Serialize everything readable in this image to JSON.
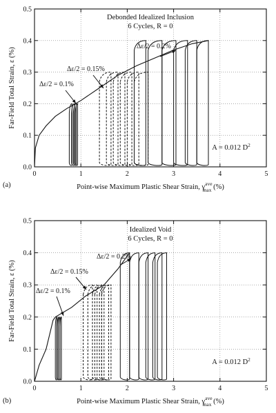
{
  "chart_data": [
    {
      "type": "line",
      "panel_label": "(a)",
      "title_lines": [
        "Debonded Idealized Inclusion",
        "6 Cycles, R = 0"
      ],
      "xlabel_main": "Point-wise Maximum Plastic Shear Strain, γ",
      "xlabel_sup": "ave",
      "xlabel_sub": "max",
      "xlabel_unit": "(%)",
      "ylabel": "Far-Field Total Strain, ε (%)",
      "xlim": [
        0,
        5
      ],
      "ylim": [
        0,
        0.5
      ],
      "xticks": [
        "0",
        "1",
        "2",
        "3",
        "4",
        "5"
      ],
      "yticks": [
        "0.0",
        "0.1",
        "0.2",
        "0.3",
        "0.4",
        "0.5"
      ],
      "grid": true,
      "area_note": "A = 0.012 D",
      "area_note_sup": "2",
      "annotations": [
        "Δε/2 = 0.2%",
        "Δε/2 = 0.15%",
        "Δε/2 = 0.1%"
      ],
      "series": [
        {
          "style": "solid",
          "envelope": [
            [
              0,
              0
            ],
            [
              0.02,
              0.06
            ],
            [
              0.1,
              0.1
            ],
            [
              0.25,
              0.13
            ],
            [
              0.45,
              0.16
            ],
            [
              0.7,
              0.185
            ],
            [
              1.0,
              0.21
            ],
            [
              1.4,
              0.25
            ],
            [
              1.8,
              0.29
            ],
            [
              2.2,
              0.32
            ],
            [
              2.6,
              0.345
            ],
            [
              3.0,
              0.37
            ],
            [
              3.4,
              0.39
            ],
            [
              3.75,
              0.4
            ]
          ],
          "loops": [
            [
              0.75,
              0.81
            ],
            [
              0.8,
              0.86
            ],
            [
              0.84,
              0.9
            ],
            [
              0.88,
              0.93
            ],
            [
              2.15,
              2.4
            ],
            [
              2.45,
              2.75
            ],
            [
              2.75,
              3.05
            ],
            [
              3.0,
              3.3
            ],
            [
              3.25,
              3.5
            ],
            [
              3.5,
              3.75
            ]
          ],
          "peaks": [
            0.2,
            0.2,
            0.2,
            0.2,
            0.4,
            0.4,
            0.4,
            0.4,
            0.4,
            0.4
          ]
        },
        {
          "style": "dashed",
          "loops": [
            [
              1.4,
              1.65
            ],
            [
              1.55,
              1.8
            ],
            [
              1.7,
              1.95
            ],
            [
              1.85,
              2.1
            ],
            [
              2.0,
              2.25
            ],
            [
              2.15,
              2.45
            ]
          ],
          "peaks": [
            0.3,
            0.3,
            0.3,
            0.3,
            0.3,
            0.3
          ]
        }
      ]
    },
    {
      "type": "line",
      "panel_label": "(b)",
      "title_lines": [
        "Idealized Void",
        "6 Cycles, R = 0"
      ],
      "xlabel_main": "Point-wise Maximum Plastic Shear Strain, γ",
      "xlabel_sup": "ave",
      "xlabel_sub": "max",
      "xlabel_unit": "(%)",
      "ylabel": "Far-Field Total Strain, ε (%)",
      "xlim": [
        0,
        5
      ],
      "ylim": [
        0,
        0.5
      ],
      "xticks": [
        "0",
        "1",
        "2",
        "3",
        "4",
        "5"
      ],
      "yticks": [
        "0.0",
        "0.1",
        "0.2",
        "0.3",
        "0.4",
        "0.5"
      ],
      "grid": true,
      "area_note": "A = 0.012 D",
      "area_note_sup": "2",
      "annotations": [
        "Δε/2 = 0.2%",
        "Δε/2 = 0.15%",
        "Δε/2 = 0.1%"
      ],
      "series": [
        {
          "style": "solid",
          "envelope": [
            [
              0,
              0
            ],
            [
              0.1,
              0.05
            ],
            [
              0.25,
              0.1
            ],
            [
              0.4,
              0.19
            ],
            [
              0.45,
              0.2
            ],
            [
              0.8,
              0.23
            ],
            [
              1.1,
              0.265
            ],
            [
              1.5,
              0.3
            ],
            [
              1.8,
              0.35
            ],
            [
              2.05,
              0.4
            ]
          ],
          "loops": [
            [
              0.45,
              0.48
            ],
            [
              0.49,
              0.52
            ],
            [
              0.52,
              0.55
            ],
            [
              0.55,
              0.58
            ],
            [
              1.85,
              2.05
            ],
            [
              2.05,
              2.25
            ],
            [
              2.25,
              2.45
            ],
            [
              2.4,
              2.6
            ],
            [
              2.55,
              2.75
            ],
            [
              2.65,
              2.85
            ]
          ],
          "peaks": [
            0.2,
            0.2,
            0.2,
            0.2,
            0.4,
            0.4,
            0.4,
            0.4,
            0.4,
            0.4
          ]
        },
        {
          "style": "dashed",
          "loops": [
            [
              1.05,
              1.25
            ],
            [
              1.15,
              1.35
            ],
            [
              1.25,
              1.45
            ],
            [
              1.3,
              1.5
            ],
            [
              1.4,
              1.6
            ],
            [
              1.45,
              1.65
            ]
          ],
          "peaks": [
            0.3,
            0.3,
            0.3,
            0.3,
            0.3,
            0.3
          ]
        }
      ]
    }
  ]
}
